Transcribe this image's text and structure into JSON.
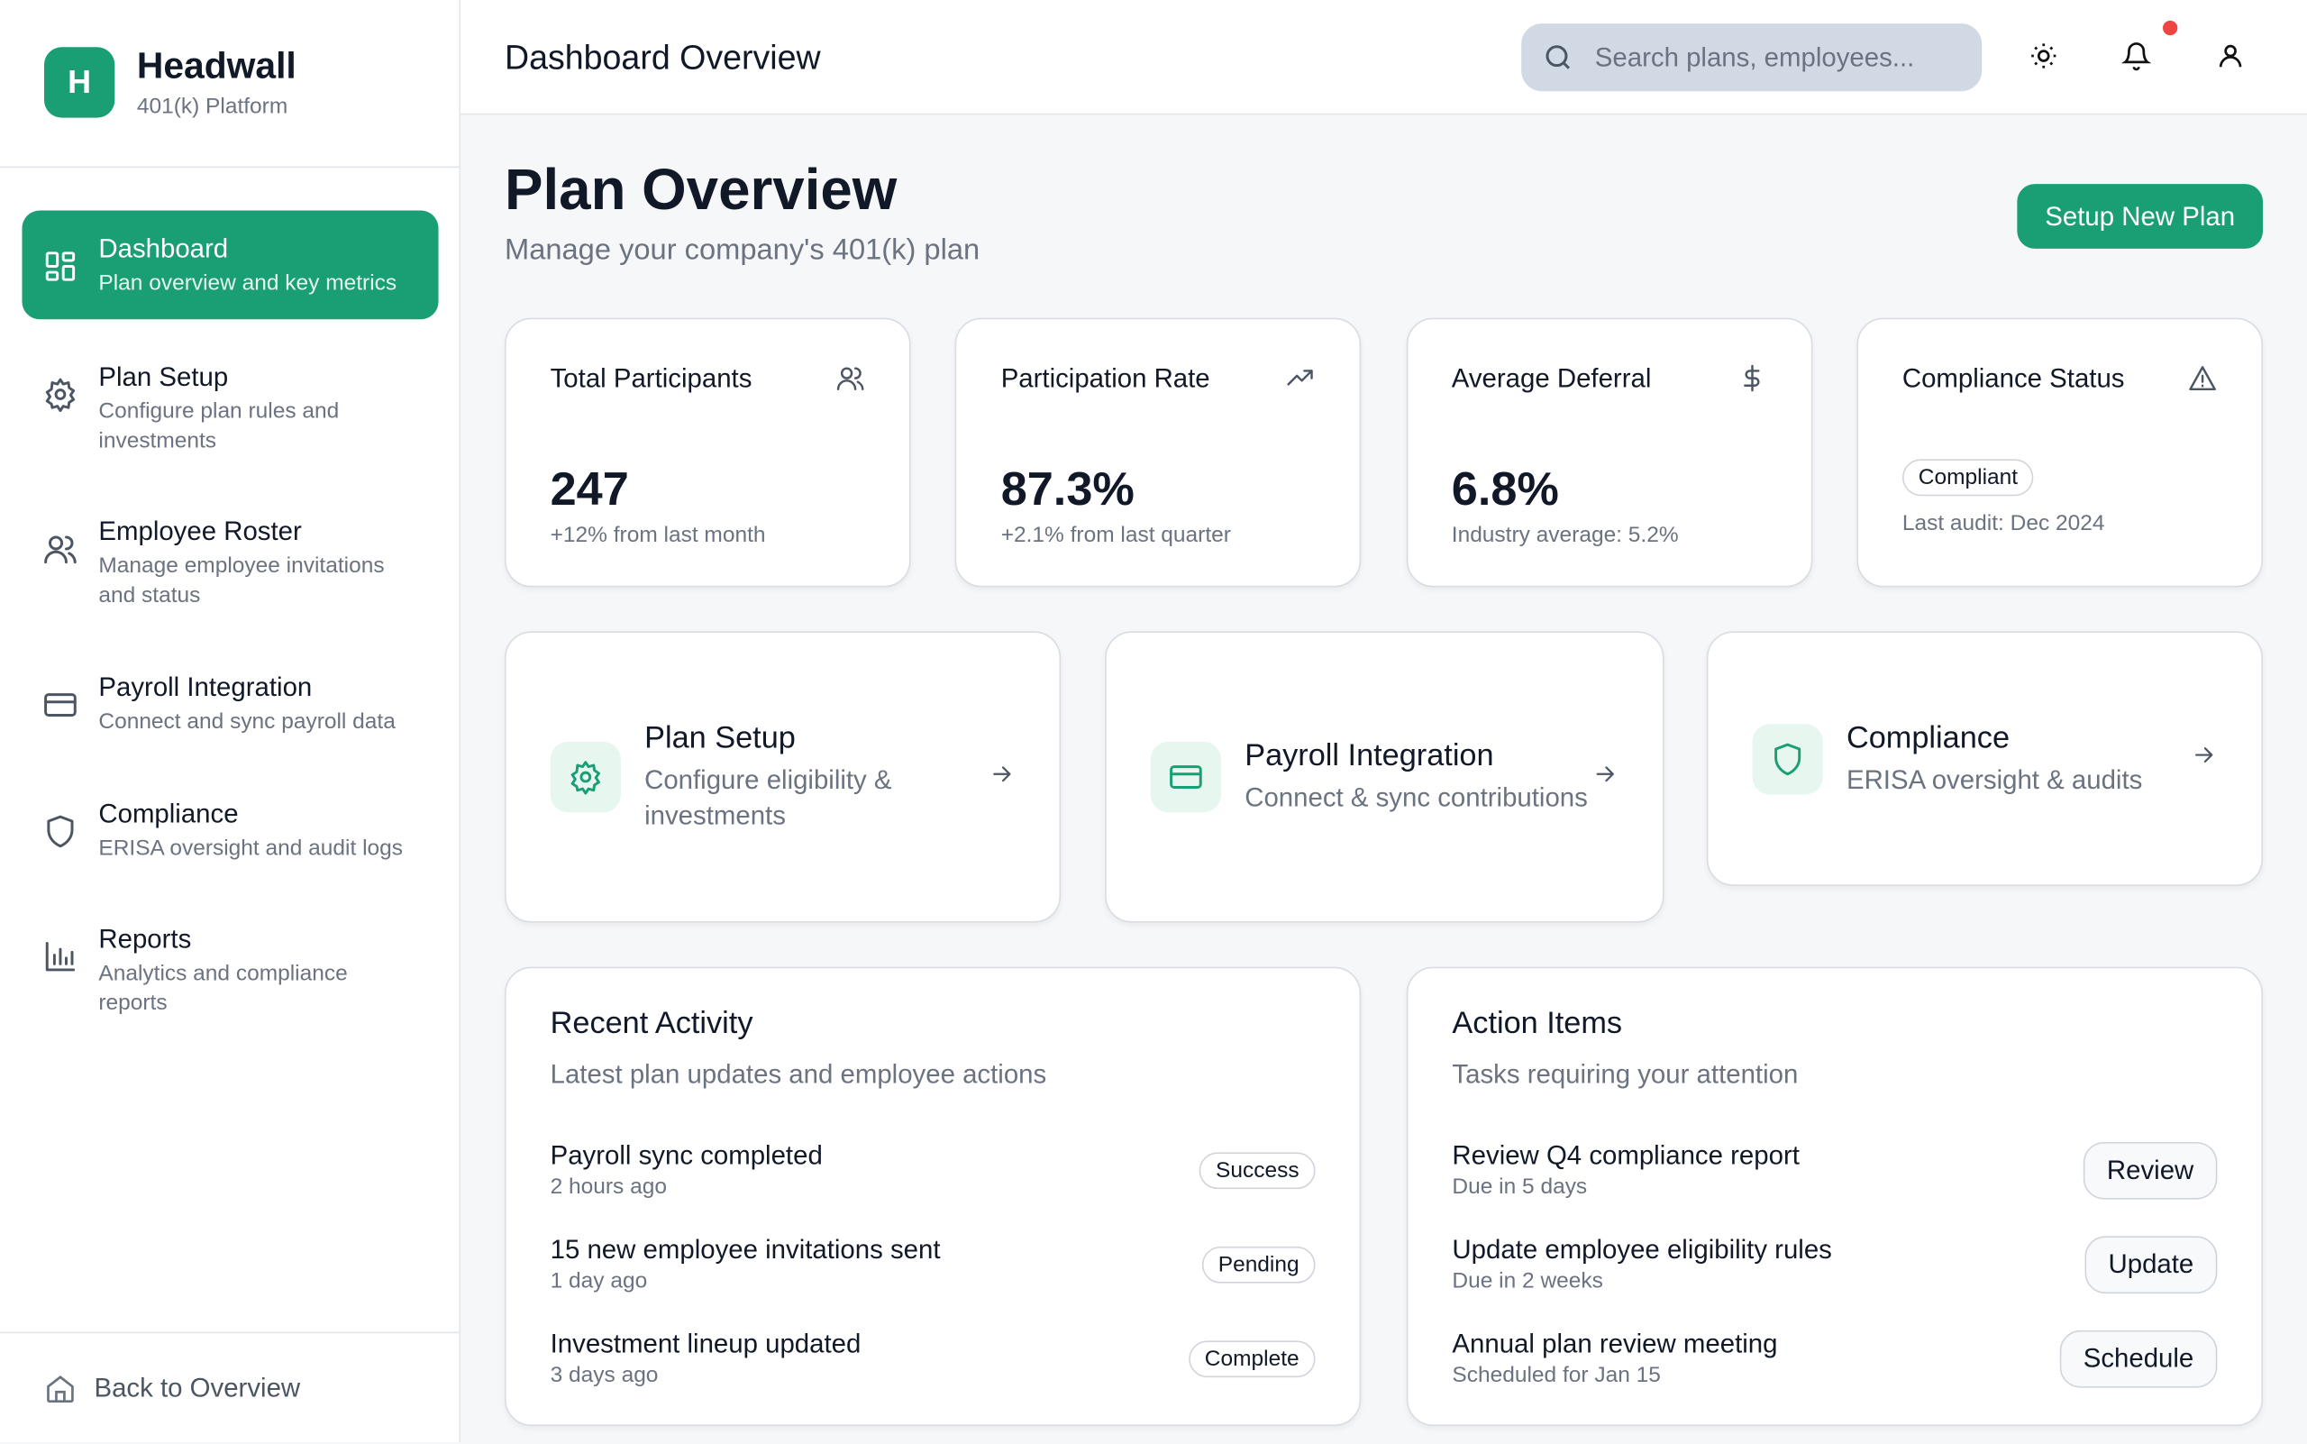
{
  "sidebar": {
    "brand": {
      "initial": "H",
      "name": "Headwall",
      "subtitle": "401(k) Platform"
    },
    "nav": [
      {
        "label": "Dashboard",
        "description": "Plan overview and key metrics"
      },
      {
        "label": "Plan Setup",
        "description": "Configure plan rules and investments"
      },
      {
        "label": "Employee Roster",
        "description": "Manage employee invitations and status"
      },
      {
        "label": "Payroll Integration",
        "description": "Connect and sync payroll data"
      },
      {
        "label": "Compliance",
        "description": "ERISA oversight and audit logs"
      },
      {
        "label": "Reports",
        "description": "Analytics and compliance reports"
      }
    ],
    "footer": "Back to Overview"
  },
  "header": {
    "title": "Dashboard Overview",
    "search_placeholder": "Search plans, employees..."
  },
  "page": {
    "title": "Plan Overview",
    "subtitle": "Manage your company's 401(k) plan",
    "action": "Setup New Plan"
  },
  "stats": [
    {
      "label": "Total Participants",
      "value": "247",
      "note": "+12% from last month"
    },
    {
      "label": "Participation Rate",
      "value": "87.3%",
      "note": "+2.1% from last quarter"
    },
    {
      "label": "Average Deferral",
      "value": "6.8%",
      "note": "Industry average: 5.2%"
    },
    {
      "label": "Compliance Status",
      "badge": "Compliant",
      "note": "Last audit: Dec 2024"
    }
  ],
  "quick_links": [
    {
      "title": "Plan Setup",
      "description": "Configure eligibility & investments"
    },
    {
      "title": "Payroll Integration",
      "description": "Connect & sync contributions"
    },
    {
      "title": "Compliance",
      "description": "ERISA oversight & audits"
    }
  ],
  "recent_activity": {
    "title": "Recent Activity",
    "subtitle": "Latest plan updates and employee actions",
    "items": [
      {
        "title": "Payroll sync completed",
        "time": "2 hours ago",
        "status": "Success"
      },
      {
        "title": "15 new employee invitations sent",
        "time": "1 day ago",
        "status": "Pending"
      },
      {
        "title": "Investment lineup updated",
        "time": "3 days ago",
        "status": "Complete"
      }
    ]
  },
  "action_items": {
    "title": "Action Items",
    "subtitle": "Tasks requiring your attention",
    "items": [
      {
        "title": "Review Q4 compliance report",
        "due": "Due in 5 days",
        "action": "Review"
      },
      {
        "title": "Update employee eligibility rules",
        "due": "Due in 2 weeks",
        "action": "Update"
      },
      {
        "title": "Annual plan review meeting",
        "due": "Scheduled for Jan 15",
        "action": "Schedule"
      }
    ]
  }
}
